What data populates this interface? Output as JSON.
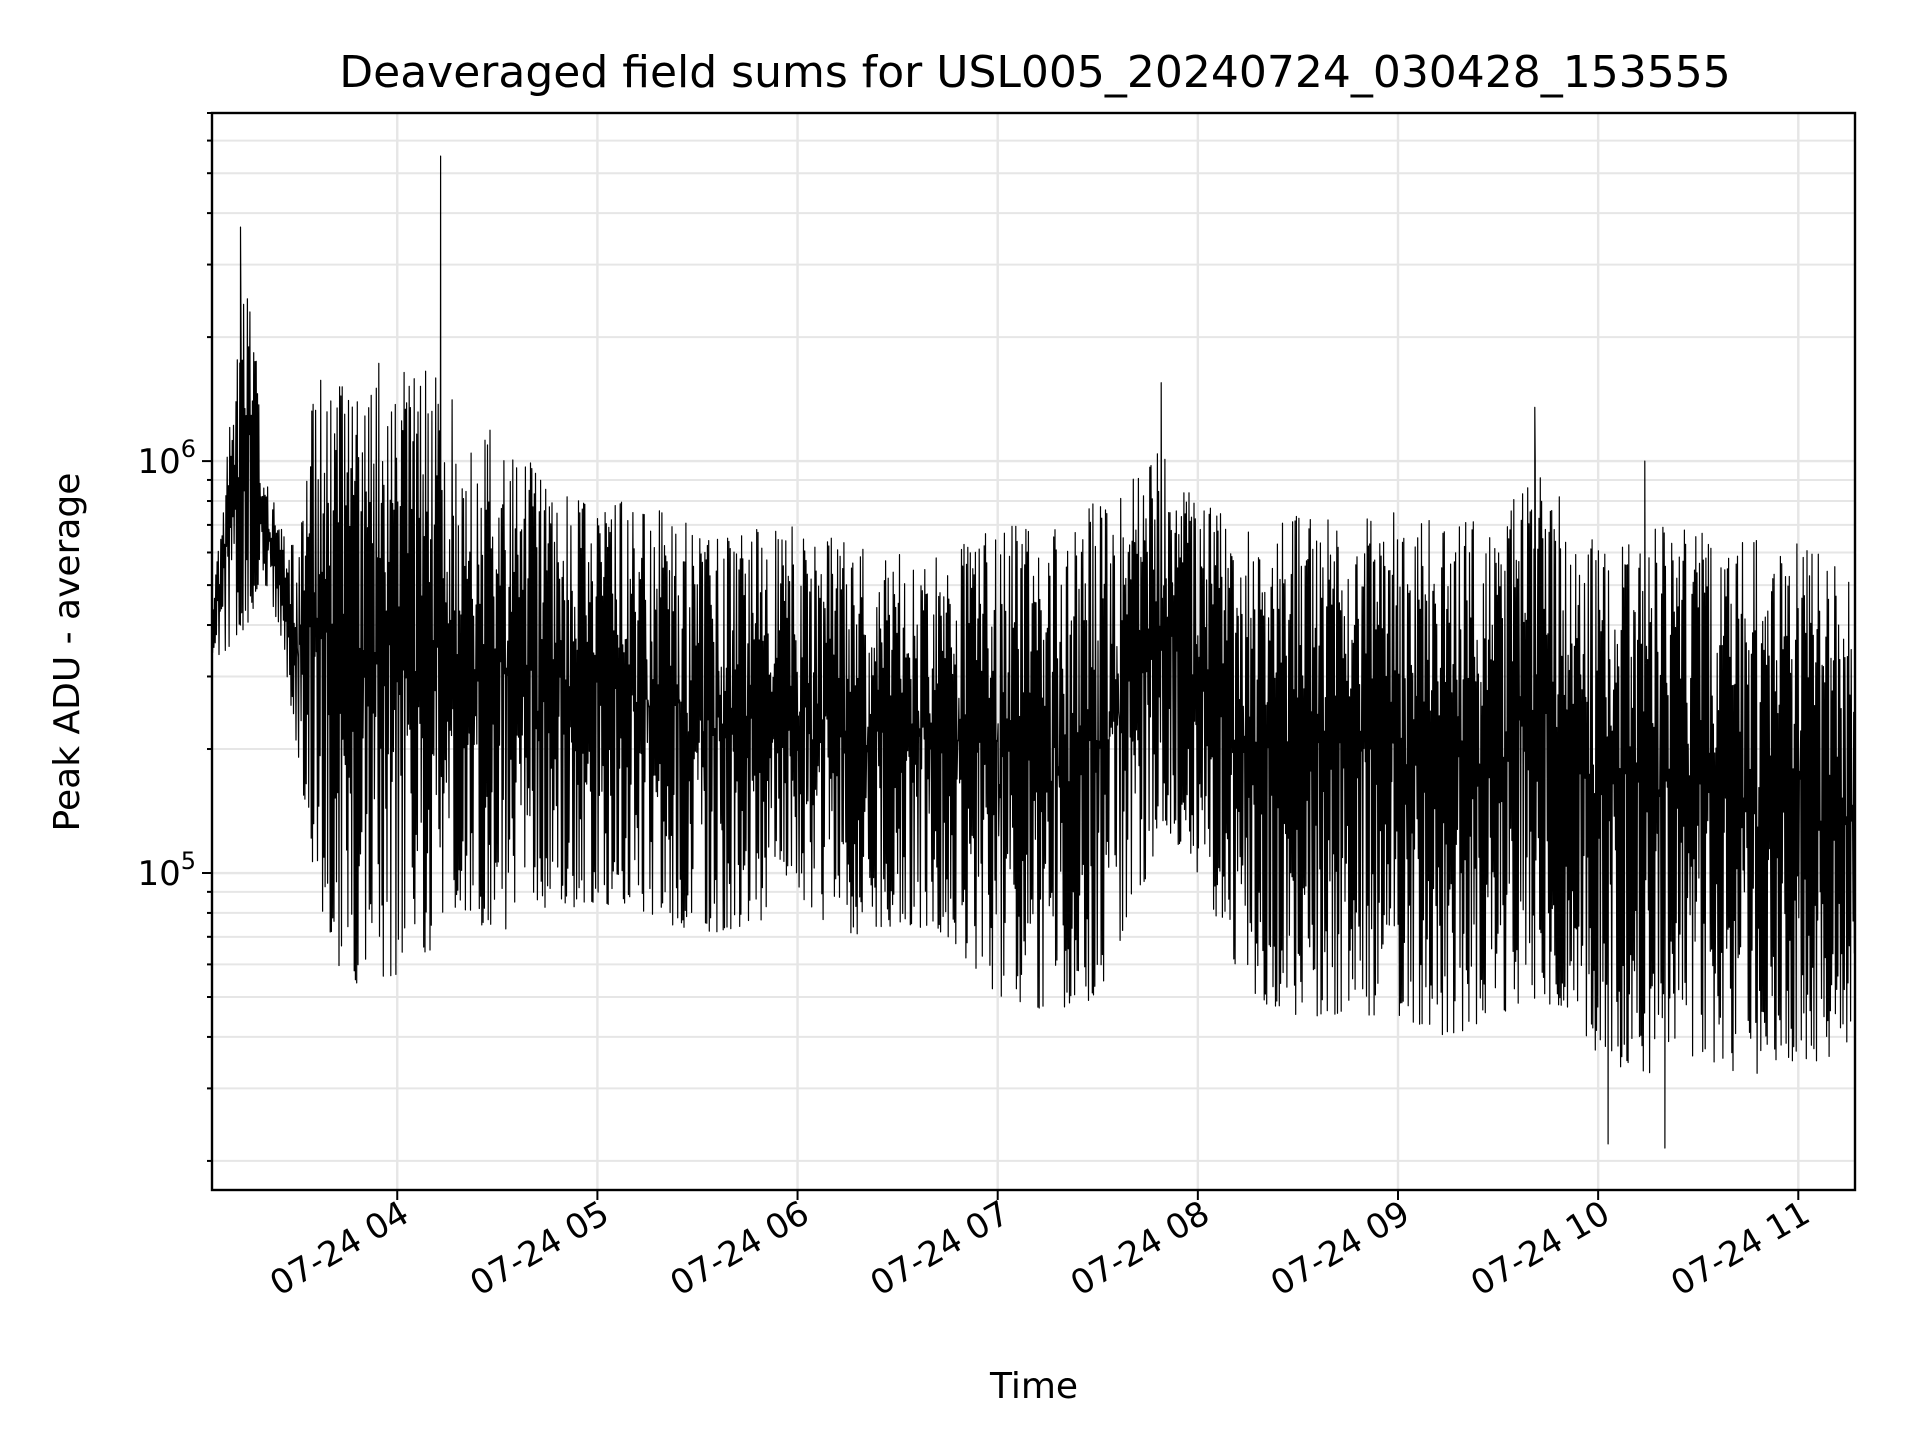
{
  "chart_data": {
    "type": "line",
    "title": "Deaveraged field sums for USL005_20240724_030428_153555",
    "xlabel": "Time",
    "ylabel": "Peak ADU - average",
    "y_scale": "log",
    "ylim": [
      17000,
      7000000
    ],
    "xlim": [
      "2024-07-24 03:04:28",
      "2024-07-24 11:17:00"
    ],
    "grid": "on (major and minor, light gray)",
    "legend": "none",
    "line_color": "#000000",
    "x_ticks": [
      {
        "value": "2024-07-24 04:00",
        "label": "07-24 04"
      },
      {
        "value": "2024-07-24 05:00",
        "label": "07-24 05"
      },
      {
        "value": "2024-07-24 06:00",
        "label": "07-24 06"
      },
      {
        "value": "2024-07-24 07:00",
        "label": "07-24 07"
      },
      {
        "value": "2024-07-24 08:00",
        "label": "07-24 08"
      },
      {
        "value": "2024-07-24 09:00",
        "label": "07-24 09"
      },
      {
        "value": "2024-07-24 10:00",
        "label": "07-24 10"
      },
      {
        "value": "2024-07-24 11:00",
        "label": "07-24 11"
      }
    ],
    "y_ticks": [
      {
        "value": 100000,
        "base": "10",
        "exp": "5"
      },
      {
        "value": 1000000,
        "base": "10",
        "exp": "6"
      }
    ],
    "series": [
      {
        "x": [
          "2024-07-24 03:05",
          "2024-07-24 03:15",
          "2024-07-24 03:20",
          "2024-07-24 03:25",
          "2024-07-24 03:30",
          "2024-07-24 03:35",
          "2024-07-24 03:40",
          "2024-07-24 03:45",
          "2024-07-24 03:50",
          "2024-07-24 03:55",
          "2024-07-24 04:00",
          "2024-07-24 04:05",
          "2024-07-24 04:10",
          "2024-07-24 04:15",
          "2024-07-24 04:20",
          "2024-07-24 04:30",
          "2024-07-24 04:45",
          "2024-07-24 05:00",
          "2024-07-24 05:15",
          "2024-07-24 05:30",
          "2024-07-24 05:45",
          "2024-07-24 06:00",
          "2024-07-24 06:15",
          "2024-07-24 06:30",
          "2024-07-24 06:45",
          "2024-07-24 07:00",
          "2024-07-24 07:15",
          "2024-07-24 07:30",
          "2024-07-24 07:45",
          "2024-07-24 07:50",
          "2024-07-24 08:00",
          "2024-07-24 08:15",
          "2024-07-24 08:30",
          "2024-07-24 08:45",
          "2024-07-24 09:00",
          "2024-07-24 09:15",
          "2024-07-24 09:30",
          "2024-07-24 09:40",
          "2024-07-24 09:50",
          "2024-07-24 10:00",
          "2024-07-24 10:15",
          "2024-07-24 10:30",
          "2024-07-24 10:45",
          "2024-07-24 11:00",
          "2024-07-24 11:15"
        ],
        "y_low": [
          320000,
          400000,
          500000,
          380000,
          200000,
          100000,
          65000,
          50000,
          55000,
          55000,
          55000,
          60000,
          65000,
          80000,
          80000,
          70000,
          80000,
          85000,
          80000,
          70000,
          75000,
          80000,
          70000,
          75000,
          70000,
          50000,
          45000,
          50000,
          100000,
          130000,
          100000,
          50000,
          45000,
          45000,
          45000,
          40000,
          45000,
          50000,
          45000,
          35000,
          32000,
          35000,
          32000,
          35000,
          35000
        ],
        "y_high": [
          500000,
          3500000,
          1000000,
          700000,
          600000,
          1500000,
          1700000,
          1800000,
          1800000,
          1800000,
          1800000,
          1800000,
          1800000,
          1500000,
          1300000,
          1200000,
          900000,
          800000,
          800000,
          700000,
          700000,
          700000,
          650000,
          600000,
          600000,
          700000,
          700000,
          800000,
          1000000,
          1200000,
          800000,
          700000,
          750000,
          750000,
          750000,
          750000,
          700000,
          1100000,
          800000,
          650000,
          700000,
          700000,
          650000,
          650000,
          550000
        ],
        "spikes": [
          {
            "x": "2024-07-24 03:13",
            "y": 3700000
          },
          {
            "x": "2024-07-24 04:13",
            "y": 5500000
          },
          {
            "x": "2024-07-24 07:49",
            "y": 1550000
          },
          {
            "x": "2024-07-24 09:41",
            "y": 1350000
          },
          {
            "x": "2024-07-24 10:14",
            "y": 1000000
          },
          {
            "x": "2024-07-24 10:03",
            "y": 22000
          },
          {
            "x": "2024-07-24 10:20",
            "y": 21500
          }
        ]
      }
    ]
  }
}
